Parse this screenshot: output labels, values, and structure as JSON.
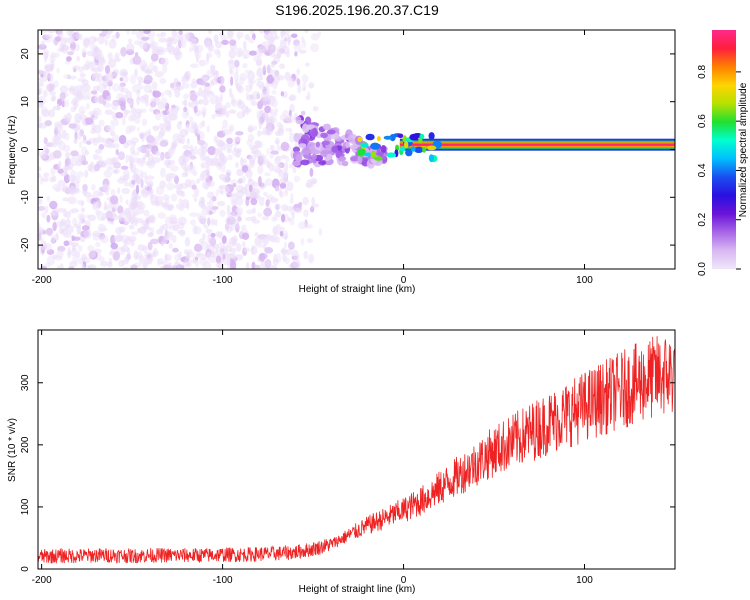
{
  "title": "S196.2025.196.20.37.C19",
  "chart_data": [
    {
      "type": "heatmap",
      "xlabel": "Height of straight line (km)",
      "ylabel": "Frequency (Hz)",
      "xlim": [
        -202,
        150
      ],
      "ylim": [
        -25,
        25
      ],
      "x_ticks": [
        -200,
        -100,
        0,
        100
      ],
      "y_ticks": [
        -20,
        -10,
        0,
        10,
        20
      ],
      "colorbar": {
        "label": "Normalized spectral amplitude",
        "range": [
          0,
          0.97
        ],
        "ticks": [
          0.0,
          0.2,
          0.4,
          0.6,
          0.8
        ],
        "colormap": [
          "#f0e6fa",
          "#d9b8f2",
          "#a866e8",
          "#6a14d8",
          "#2a10e0",
          "#1a4df0",
          "#00bfff",
          "#00ffd0",
          "#20e030",
          "#b8e000",
          "#ffd400",
          "#ff8000",
          "#ff1f3d",
          "#ff2a8a"
        ]
      },
      "features": [
        {
          "description": "scattered noise",
          "x_range": [
            -202,
            -45
          ],
          "f_range": [
            -25,
            25
          ],
          "amplitude_range": [
            0.0,
            0.1
          ]
        },
        {
          "description": "transition band",
          "x_range": [
            -60,
            -10
          ],
          "f_range": [
            -3,
            7
          ],
          "amplitude_range": [
            0.05,
            0.2
          ]
        },
        {
          "description": "signal line",
          "x_range": [
            -20,
            150
          ],
          "frequency": 1,
          "amplitude_range": [
            0.3,
            0.97
          ]
        }
      ]
    },
    {
      "type": "line",
      "xlabel": "Height of straight line (km)",
      "ylabel": "SNR (10 * v/v)",
      "xlim": [
        -202,
        150
      ],
      "ylim": [
        0,
        385
      ],
      "x_ticks": [
        -200,
        -100,
        0,
        100
      ],
      "y_ticks": [
        0,
        100,
        200,
        300
      ],
      "color": "#ee2222",
      "series": [
        {
          "x": [
            -202,
            -190,
            -180,
            -170,
            -160,
            -150,
            -140,
            -130,
            -120,
            -110,
            -100,
            -90,
            -80,
            -70,
            -60,
            -50,
            -40,
            -30,
            -20,
            -10,
            0,
            10,
            20,
            30,
            40,
            50,
            60,
            70,
            80,
            90,
            100,
            110,
            120,
            130,
            140,
            150
          ],
          "y": [
            20,
            21,
            21,
            22,
            22,
            21,
            22,
            22,
            22,
            22,
            23,
            23,
            24,
            25,
            27,
            32,
            40,
            55,
            70,
            82,
            95,
            110,
            130,
            150,
            170,
            190,
            205,
            220,
            235,
            248,
            262,
            275,
            288,
            300,
            310,
            315
          ]
        }
      ]
    }
  ]
}
